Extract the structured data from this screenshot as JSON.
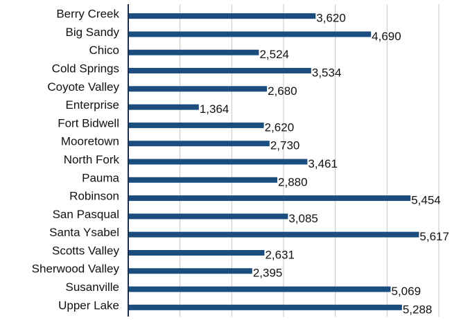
{
  "chart_data": {
    "type": "hbar",
    "categories": [
      "Berry Creek",
      "Big Sandy",
      "Chico",
      "Cold Springs",
      "Coyote Valley",
      "Enterprise",
      "Fort Bidwell",
      "Mooretown",
      "North Fork",
      "Pauma",
      "Robinson",
      "San Pasqual",
      "Santa Ysabel",
      "Scotts Valley",
      "Sherwood Valley",
      "Susanville",
      "Upper Lake"
    ],
    "values": [
      3620,
      4690,
      2524,
      3534,
      2680,
      1364,
      2620,
      2730,
      3461,
      2880,
      5454,
      3085,
      5617,
      2631,
      2395,
      5069,
      5288
    ],
    "value_labels": [
      "3,620",
      "4,690",
      "2,524",
      "3,534",
      "2,680",
      "1,364",
      "2,620",
      "2,730",
      "3,461",
      "2,880",
      "5,454",
      "3,085",
      "5,617",
      "2,631",
      "2,395",
      "5,069",
      "5,288"
    ],
    "color": "#1b4e7e",
    "xlim": [
      0,
      6000
    ],
    "xticks": [
      0,
      1000,
      2000,
      3000,
      4000,
      5000,
      6000
    ],
    "grid": true
  }
}
